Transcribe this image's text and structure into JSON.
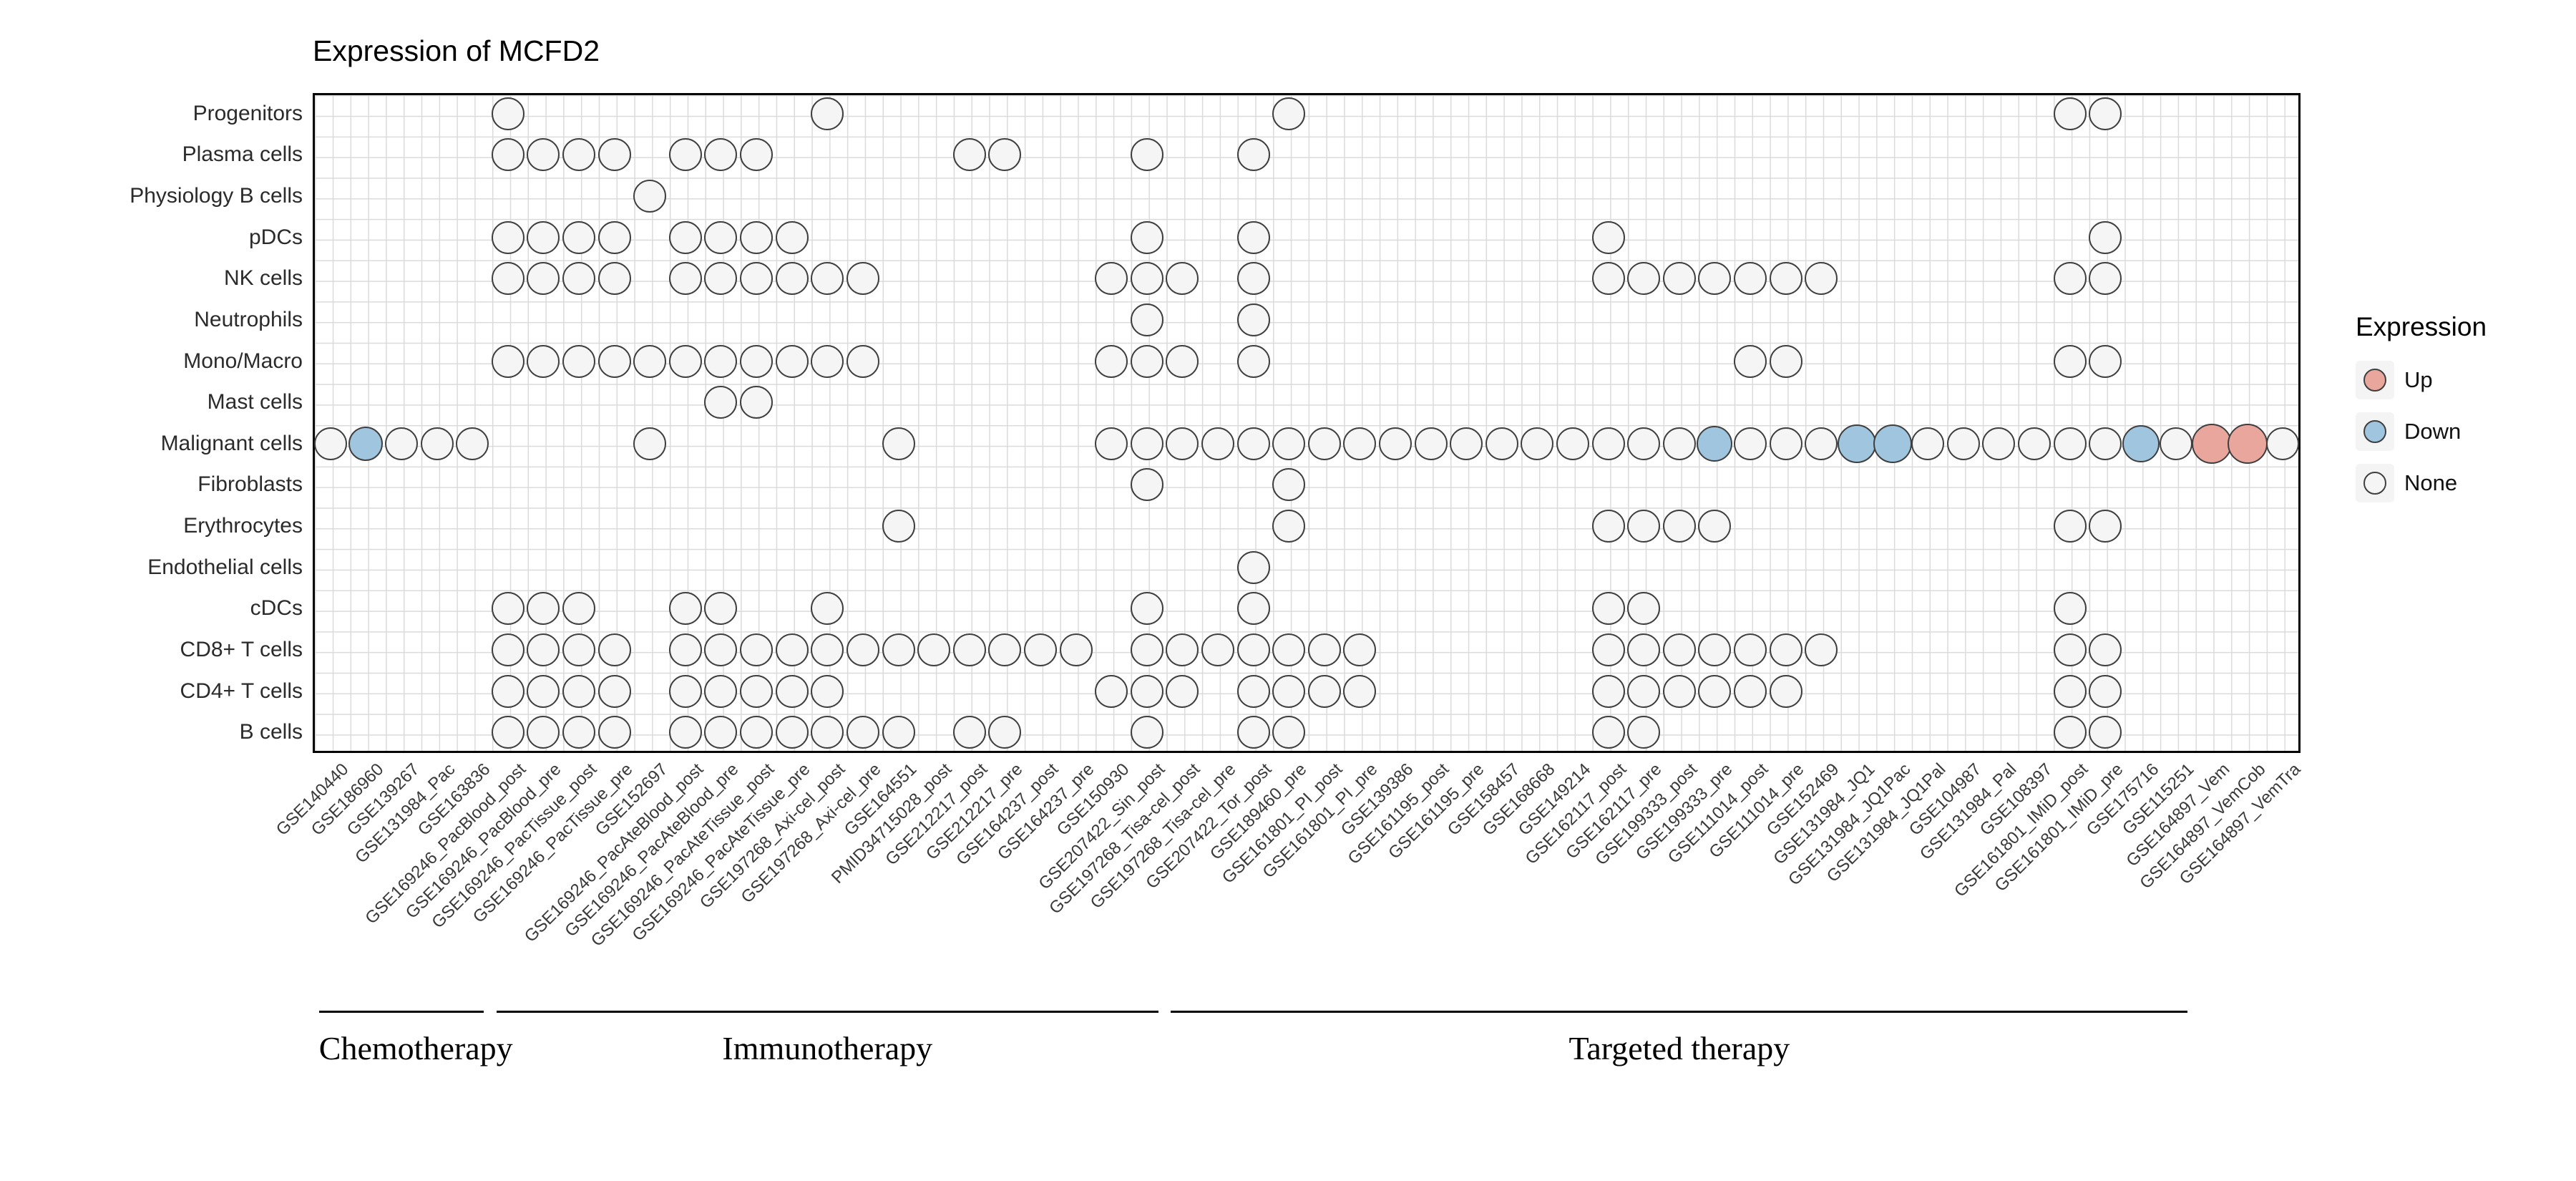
{
  "title": "Expression of MCFD2",
  "legend": {
    "title": "Expression",
    "items": [
      {
        "label": "Up",
        "state": "up"
      },
      {
        "label": "Down",
        "state": "down"
      },
      {
        "label": "None",
        "state": "none"
      }
    ]
  },
  "colors": {
    "up": "#E9A69D",
    "down": "#9FC5DF",
    "none": "#F5F5F5",
    "dot_border": "#3F3F3F",
    "grid": "#DBDBDB",
    "panel_border": "#000000"
  },
  "chart_data": {
    "type": "dot-matrix",
    "title": "Expression of MCFD2",
    "xlabel": "",
    "ylabel": "",
    "legend_position": "right",
    "rows": [
      "Progenitors",
      "Plasma cells",
      "Physiology B cells",
      "pDCs",
      "NK cells",
      "Neutrophils",
      "Mono/Macro",
      "Mast cells",
      "Malignant cells",
      "Fibroblasts",
      "Erythrocytes",
      "Endothelial cells",
      "cDCs",
      "CD8+ T cells",
      "CD4+ T cells",
      "B cells"
    ],
    "columns": [
      "GSE140440",
      "GSE186960",
      "GSE139267",
      "GSE131984_Pac",
      "GSE163836",
      "GSE169246_PacBlood_post",
      "GSE169246_PacBlood_pre",
      "GSE169246_PacTissue_post",
      "GSE169246_PacTissue_pre",
      "GSE152697",
      "GSE169246_PacAteBlood_post",
      "GSE169246_PacAteBlood_pre",
      "GSE169246_PacAteTissue_post",
      "GSE169246_PacAteTissue_pre",
      "GSE197268_Axi-cel_post",
      "GSE197268_Axi-cel_pre",
      "GSE164551",
      "PMID34715028_post",
      "GSE212217_post",
      "GSE212217_pre",
      "GSE164237_post",
      "GSE164237_pre",
      "GSE150930",
      "GSE207422_Sin_post",
      "GSE197268_Tisa-cel_post",
      "GSE197268_Tisa-cel_pre",
      "GSE207422_Tor_post",
      "GSE189460_pre",
      "GSE161801_PI_post",
      "GSE161801_PI_pre",
      "GSE139386",
      "GSE161195_post",
      "GSE161195_pre",
      "GSE158457",
      "GSE168668",
      "GSE149214",
      "GSE162117_post",
      "GSE162117_pre",
      "GSE199333_post",
      "GSE199333_pre",
      "GSE111014_post",
      "GSE111014_pre",
      "GSE152469",
      "GSE131984_JQ1",
      "GSE131984_JQ1Pac",
      "GSE131984_JQ1Pal",
      "GSE104987",
      "GSE131984_Pal",
      "GSE108397",
      "GSE161801_IMiD_post",
      "GSE161801_IMiD_pre",
      "GSE175716",
      "GSE115251",
      "GSE164897_Vem",
      "GSE164897_VemCob",
      "GSE164897_VemTra"
    ],
    "presence": {
      "Progenitors": [
        5,
        14,
        27,
        49,
        50
      ],
      "Plasma cells": [
        5,
        6,
        7,
        8,
        10,
        11,
        12,
        18,
        19,
        23,
        26
      ],
      "Physiology B cells": [
        9
      ],
      "pDCs": [
        5,
        6,
        7,
        8,
        10,
        11,
        12,
        13,
        23,
        26,
        36,
        50
      ],
      "NK cells": [
        5,
        6,
        7,
        8,
        10,
        11,
        12,
        13,
        14,
        15,
        22,
        23,
        24,
        26,
        36,
        37,
        38,
        39,
        40,
        41,
        42,
        49,
        50
      ],
      "Neutrophils": [
        23,
        26
      ],
      "Mono/Macro": [
        5,
        6,
        7,
        8,
        9,
        10,
        11,
        12,
        13,
        14,
        15,
        22,
        23,
        24,
        26,
        40,
        41,
        49,
        50
      ],
      "Mast cells": [
        11,
        12
      ],
      "Malignant cells": [
        0,
        1,
        2,
        3,
        4,
        9,
        16,
        22,
        23,
        24,
        25,
        26,
        27,
        28,
        29,
        30,
        31,
        32,
        33,
        34,
        35,
        36,
        37,
        38,
        39,
        40,
        41,
        42,
        43,
        44,
        45,
        46,
        47,
        48,
        49,
        50,
        51,
        52,
        53,
        54,
        55
      ],
      "Fibroblasts": [
        23,
        27
      ],
      "Erythrocytes": [
        16,
        27,
        36,
        37,
        38,
        39,
        49,
        50
      ],
      "Endothelial cells": [
        26
      ],
      "cDCs": [
        5,
        6,
        7,
        10,
        11,
        14,
        23,
        26,
        36,
        37,
        49
      ],
      "CD8+ T cells": [
        5,
        6,
        7,
        8,
        10,
        11,
        12,
        13,
        14,
        15,
        16,
        17,
        18,
        19,
        20,
        21,
        23,
        24,
        25,
        26,
        27,
        28,
        29,
        36,
        37,
        38,
        39,
        40,
        41,
        42,
        49,
        50
      ],
      "CD4+ T cells": [
        5,
        6,
        7,
        8,
        10,
        11,
        12,
        13,
        14,
        22,
        23,
        24,
        26,
        27,
        28,
        29,
        36,
        37,
        38,
        39,
        40,
        41,
        49,
        50
      ],
      "B cells": [
        5,
        6,
        7,
        8,
        10,
        11,
        12,
        13,
        14,
        15,
        16,
        18,
        19,
        23,
        26,
        27,
        36,
        37,
        49,
        50
      ]
    },
    "colored": [
      {
        "row": "Malignant cells",
        "col": 1,
        "state": "Down",
        "size": 48
      },
      {
        "row": "Malignant cells",
        "col": 39,
        "state": "Down",
        "size": 50
      },
      {
        "row": "Malignant cells",
        "col": 43,
        "state": "Down",
        "size": 54
      },
      {
        "row": "Malignant cells",
        "col": 44,
        "state": "Down",
        "size": 54
      },
      {
        "row": "Malignant cells",
        "col": 51,
        "state": "Down",
        "size": 52
      },
      {
        "row": "Malignant cells",
        "col": 53,
        "state": "Up",
        "size": 56
      },
      {
        "row": "Malignant cells",
        "col": 54,
        "state": "Up",
        "size": 56
      }
    ],
    "groups": [
      {
        "label": "Chemotherapy",
        "start": 0,
        "end": 4
      },
      {
        "label": "Immunotherapy",
        "start": 5,
        "end": 23
      },
      {
        "label": "Targeted therapy",
        "start": 24,
        "end": 52
      }
    ]
  }
}
